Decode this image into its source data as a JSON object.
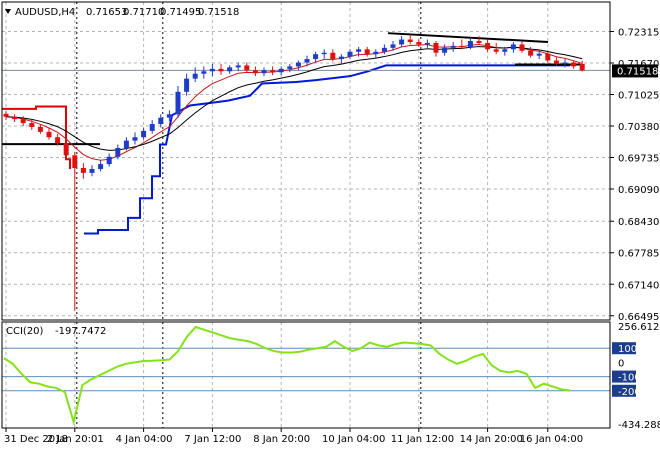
{
  "chart_data": [
    {
      "type": "candlestick",
      "symbol": "AUDUSD,H4",
      "ohlc_readout": [
        "0.71653",
        "0.71710",
        "0.71495",
        "0.71518"
      ],
      "current_price": "0.71518",
      "y_ticks": [
        "0.72315",
        "0.71670",
        "0.71025",
        "0.70380",
        "0.69735",
        "0.69090",
        "0.68430",
        "0.67785",
        "0.67140",
        "0.66495"
      ],
      "ylim": [
        0.6649,
        0.7255
      ],
      "x_ticks": [
        "31 Dec 2018",
        "2 Jan 20:01",
        "4 Jan 04:00",
        "7 Jan 12:00",
        "8 Jan 20:00",
        "10 Jan 04:00",
        "11 Jan 12:00",
        "14 Jan 20:00",
        "16 Jan 04:00"
      ],
      "colors": {
        "bull": "#1e3cc8",
        "bear": "#e01010",
        "red_trail": "#e00000",
        "blue_trail": "#0018d8",
        "ma_red": "#c81818",
        "ma_black": "#000000",
        "grid": "#b4b4b4"
      },
      "candles": [
        [
          0.7063,
          0.7068,
          0.705,
          0.7057
        ],
        [
          0.7057,
          0.7062,
          0.7046,
          0.7052
        ],
        [
          0.7052,
          0.7058,
          0.7038,
          0.7044
        ],
        [
          0.7044,
          0.705,
          0.703,
          0.7036
        ],
        [
          0.7036,
          0.7042,
          0.7022,
          0.7026
        ],
        [
          0.7026,
          0.7033,
          0.701,
          0.7015
        ],
        [
          0.7015,
          0.7022,
          0.6998,
          0.7003
        ],
        [
          0.7003,
          0.701,
          0.6972,
          0.6978
        ],
        [
          0.6978,
          0.6985,
          0.666,
          0.6952
        ],
        [
          0.6952,
          0.6962,
          0.693,
          0.6942
        ],
        [
          0.6942,
          0.6958,
          0.6935,
          0.695
        ],
        [
          0.695,
          0.6968,
          0.6945,
          0.696
        ],
        [
          0.696,
          0.6982,
          0.6955,
          0.6975
        ],
        [
          0.6975,
          0.7,
          0.697,
          0.6993
        ],
        [
          0.6993,
          0.7015,
          0.6988,
          0.7008
        ],
        [
          0.7008,
          0.7025,
          0.7,
          0.7015
        ],
        [
          0.7015,
          0.7035,
          0.701,
          0.7028
        ],
        [
          0.7028,
          0.705,
          0.7022,
          0.7042
        ],
        [
          0.7042,
          0.7062,
          0.7035,
          0.7055
        ],
        [
          0.7055,
          0.707,
          0.7048,
          0.7062
        ],
        [
          0.7062,
          0.712,
          0.7055,
          0.7108
        ],
        [
          0.7108,
          0.7145,
          0.71,
          0.7135
        ],
        [
          0.7135,
          0.7158,
          0.7128,
          0.7145
        ],
        [
          0.7145,
          0.716,
          0.7135,
          0.715
        ],
        [
          0.715,
          0.7165,
          0.714,
          0.7155
        ],
        [
          0.7155,
          0.7165,
          0.7143,
          0.715
        ],
        [
          0.715,
          0.7162,
          0.7145,
          0.7158
        ],
        [
          0.7158,
          0.7168,
          0.715,
          0.7162
        ],
        [
          0.7162,
          0.7168,
          0.7148,
          0.7152
        ],
        [
          0.7152,
          0.716,
          0.714,
          0.7146
        ],
        [
          0.7146,
          0.7158,
          0.714,
          0.7152
        ],
        [
          0.7152,
          0.716,
          0.7142,
          0.7148
        ],
        [
          0.7148,
          0.716,
          0.7142,
          0.7155
        ],
        [
          0.7155,
          0.7165,
          0.7148,
          0.716
        ],
        [
          0.716,
          0.7172,
          0.7152,
          0.7168
        ],
        [
          0.7168,
          0.7182,
          0.716,
          0.7175
        ],
        [
          0.7175,
          0.719,
          0.7168,
          0.7185
        ],
        [
          0.7185,
          0.7195,
          0.7176,
          0.7188
        ],
        [
          0.7188,
          0.7195,
          0.717,
          0.7175
        ],
        [
          0.7175,
          0.7185,
          0.7165,
          0.718
        ],
        [
          0.718,
          0.7195,
          0.7175,
          0.719
        ],
        [
          0.719,
          0.72,
          0.718,
          0.7195
        ],
        [
          0.7195,
          0.72,
          0.718,
          0.7185
        ],
        [
          0.7185,
          0.7195,
          0.7178,
          0.719
        ],
        [
          0.719,
          0.7205,
          0.7185,
          0.7198
        ],
        [
          0.7198,
          0.7212,
          0.7192,
          0.7205
        ],
        [
          0.7205,
          0.7222,
          0.72,
          0.7215
        ],
        [
          0.7215,
          0.7225,
          0.7205,
          0.721
        ],
        [
          0.721,
          0.7215,
          0.72,
          0.7205
        ],
        [
          0.7205,
          0.7215,
          0.7198,
          0.7208
        ],
        [
          0.7208,
          0.7212,
          0.718,
          0.7188
        ],
        [
          0.7188,
          0.7205,
          0.7182,
          0.7198
        ],
        [
          0.7198,
          0.721,
          0.719,
          0.7202
        ],
        [
          0.7202,
          0.7215,
          0.7195,
          0.72
        ],
        [
          0.72,
          0.7218,
          0.7195,
          0.7212
        ],
        [
          0.7212,
          0.7222,
          0.7205,
          0.7208
        ],
        [
          0.7208,
          0.7215,
          0.719,
          0.7195
        ],
        [
          0.7195,
          0.7208,
          0.7185,
          0.719
        ],
        [
          0.719,
          0.72,
          0.7182,
          0.7195
        ],
        [
          0.7195,
          0.721,
          0.7188,
          0.7205
        ],
        [
          0.7205,
          0.7212,
          0.7188,
          0.7192
        ],
        [
          0.7192,
          0.72,
          0.7178,
          0.7182
        ],
        [
          0.7182,
          0.7192,
          0.7175,
          0.7186
        ],
        [
          0.7186,
          0.719,
          0.7168,
          0.7172
        ],
        [
          0.7172,
          0.718,
          0.7162,
          0.7165
        ],
        [
          0.7165,
          0.7175,
          0.7158,
          0.7168
        ],
        [
          0.7168,
          0.7172,
          0.7155,
          0.716
        ],
        [
          0.7165,
          0.7171,
          0.71495,
          0.71518
        ]
      ],
      "bands": {
        "red_trail": [
          0.7075,
          0.7075,
          0.7075,
          0.7075,
          0.7075,
          0.7072,
          0.7072,
          0.7072,
          0.7072,
          0.7072
        ],
        "blue_trail_levels": [
          0.6818,
          0.6825,
          0.685,
          0.689,
          0.7022,
          0.706,
          0.7085,
          0.7108,
          0.7128,
          0.7148,
          0.7155
        ]
      },
      "black_level": 0.7001,
      "resistance_line": [
        0.7228,
        0.721
      ],
      "support_line": 0.7164
    },
    {
      "type": "line",
      "indicator": "CCI(20)",
      "readout": "-197.7472",
      "y_max_label": "256.6123",
      "y_min_label": "-434.2883",
      "y_ticks": [
        "100",
        "0",
        "-100",
        "-200"
      ],
      "ylim": [
        -434.2883,
        256.6123
      ],
      "levels": [
        100,
        -100,
        -200
      ],
      "color": "#84e21a",
      "values": [
        30,
        -10,
        -80,
        -140,
        -150,
        -170,
        -180,
        -210,
        -420,
        -160,
        -120,
        -90,
        -60,
        -30,
        -10,
        0,
        10,
        12,
        15,
        20,
        80,
        180,
        250,
        230,
        210,
        190,
        170,
        160,
        150,
        130,
        100,
        80,
        70,
        70,
        75,
        90,
        100,
        110,
        150,
        110,
        80,
        100,
        140,
        120,
        110,
        130,
        140,
        135,
        130,
        120,
        60,
        20,
        -10,
        10,
        40,
        60,
        -20,
        -60,
        -70,
        -60,
        -80,
        -180,
        -150,
        -170,
        -190,
        -197.7472
      ]
    }
  ]
}
